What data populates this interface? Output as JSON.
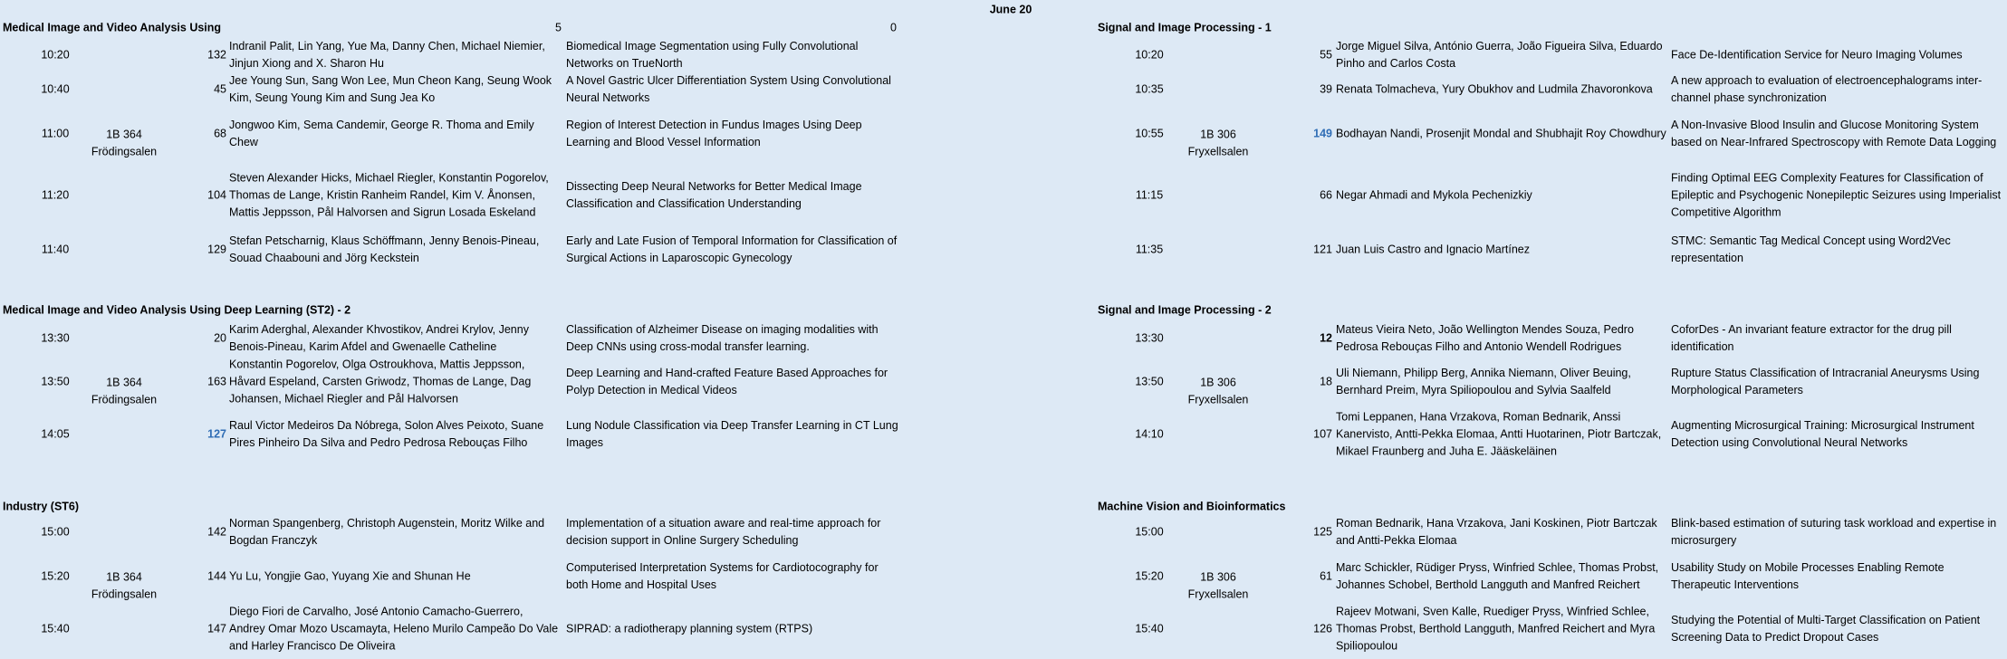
{
  "header": {
    "date": "June 20",
    "counts": [
      "5",
      "0"
    ]
  },
  "columns": [
    {
      "sessions": [
        {
          "title": "Medical Image and Video Analysis Using",
          "room": [
            "1B 364",
            "Frödingsalen"
          ],
          "talks": [
            {
              "time": "10:20",
              "id": 132,
              "authors": "Indranil Palit, Lin Yang, Yue Ma, Danny Chen, Michael Niemier, Jinjun Xiong and X. Sharon Hu",
              "title": "Biomedical Image Segmentation using Fully Convolutional Networks on TrueNorth"
            },
            {
              "time": "10:40",
              "id": 45,
              "authors": "Jee Young Sun, Sang Won Lee, Mun Cheon Kang, Seung Wook Kim, Seung Young Kim and Sung Jea Ko",
              "title": "A Novel Gastric Ulcer Differentiation System Using Convolutional Neural Networks"
            },
            {
              "time": "11:00",
              "id": 68,
              "authors": "Jongwoo Kim, Sema Candemir, George R. Thoma and Emily Chew",
              "title": "Region of Interest Detection in Fundus Images Using Deep Learning and Blood Vessel Information"
            },
            {
              "time": "11:20",
              "id": 104,
              "authors": "Steven Alexander Hicks, Michael Riegler, Konstantin Pogorelov, Thomas de Lange, Kristin Ranheim Randel, Kim V. Ånonsen, Mattis Jeppsson, Pål Halvorsen and Sigrun Losada Eskeland",
              "title": "Dissecting Deep Neural Networks for Better Medical Image Classification and Classification Understanding"
            },
            {
              "time": "11:40",
              "id": 129,
              "authors": "Stefan Petscharnig, Klaus Schöffmann, Jenny Benois-Pineau, Souad Chaabouni and Jörg Keckstein",
              "title": "Early and Late Fusion of Temporal Information for Classification of Surgical Actions in Laparoscopic Gynecology"
            }
          ]
        },
        {
          "title": "Medical Image and Video Analysis Using Deep Learning (ST2) - 2",
          "room": [
            "1B 364",
            "Frödingsalen"
          ],
          "talks": [
            {
              "time": "13:30",
              "id": 20,
              "authors": "Karim Aderghal, Alexander Khvostikov, Andrei Krylov, Jenny Benois-Pineau, Karim Afdel and Gwenaelle Catheline",
              "title": "Classification of Alzheimer Disease on imaging modalities with Deep CNNs using cross-modal transfer learning."
            },
            {
              "time": "13:50",
              "id": 163,
              "authors": "Konstantin Pogorelov, Olga Ostroukhova, Mattis Jeppsson, Håvard Espeland, Carsten Griwodz, Thomas de Lange, Dag Johansen, Michael Riegler and Pål Halvorsen",
              "title": "Deep Learning and Hand-crafted Feature Based Approaches for Polyp Detection in Medical Videos"
            },
            {
              "time": "14:05",
              "id": 127,
              "id_style": "link",
              "authors": "Raul Victor Medeiros Da Nóbrega, Solon Alves Peixoto, Suane Pires Pinheiro Da Silva and Pedro Pedrosa Rebouças Filho",
              "title": "Lung Nodule Classification via Deep Transfer Learning in CT Lung Images"
            }
          ]
        },
        {
          "title": "Industry (ST6)",
          "room": [
            "1B 364",
            "Frödingsalen"
          ],
          "talks": [
            {
              "time": "15:00",
              "id": 142,
              "authors": "Norman Spangenberg, Christoph Augenstein, Moritz Wilke and Bogdan Franczyk",
              "title": "Implementation of a situation aware and real-time approach for decision support in Online Surgery Scheduling"
            },
            {
              "time": "15:20",
              "id": 144,
              "authors": "Yu Lu, Yongjie Gao, Yuyang Xie and Shunan He",
              "title": "Computerised Interpretation Systems for Cardiotocography for both Home and Hospital Uses"
            },
            {
              "time": "15:40",
              "id": 147,
              "authors": "Diego Fiori de Carvalho, José Antonio Camacho-Guerrero, Andrey Omar Mozo Uscamayta, Heleno Murilo Campeão Do Vale and Harley Francisco De Oliveira",
              "title": "SIPRAD: a radiotherapy planning system (RTPS)"
            }
          ]
        }
      ]
    },
    {
      "sessions": [
        {
          "title": "Signal and Image Processing - 1",
          "room": [
            "1B 306",
            "Fryxellsalen"
          ],
          "talks": [
            {
              "time": "10:20",
              "id": 55,
              "authors": "Jorge Miguel Silva, António Guerra, João Figueira Silva, Eduardo Pinho and Carlos Costa",
              "title": "Face De-Identification Service for Neuro Imaging Volumes"
            },
            {
              "time": "10:35",
              "id": 39,
              "authors": "Renata Tolmacheva, Yury Obukhov and Ludmila Zhavoronkova",
              "title": "A new approach to evaluation of electroencephalograms inter-channel phase synchronization"
            },
            {
              "time": "10:55",
              "id": 149,
              "id_style": "link",
              "authors": "Bodhayan Nandi, Prosenjit Mondal and Shubhajit Roy Chowdhury",
              "title": "A Non-Invasive Blood Insulin and Glucose Monitoring System based on Near-Infrared Spectroscopy with Remote Data Logging"
            },
            {
              "time": "11:15",
              "id": 66,
              "authors": "Negar Ahmadi and Mykola Pechenizkiy",
              "title": "Finding Optimal EEG Complexity Features for Classification of Epileptic and Psychogenic Nonepileptic Seizures using Imperialist Competitive Algorithm"
            },
            {
              "time": "11:35",
              "id": 121,
              "authors": "Juan Luis Castro and Ignacio Martínez",
              "title": "STMC: Semantic Tag Medical Concept using Word2Vec representation"
            }
          ]
        },
        {
          "title": "Signal and Image Processing - 2",
          "room": [
            "1B 306",
            "Fryxellsalen"
          ],
          "talks": [
            {
              "time": "13:30",
              "id": 12,
              "id_style": "bold",
              "authors": "Mateus Vieira Neto, João Wellington Mendes Souza, Pedro Pedrosa Rebouças Filho and Antonio Wendell Rodrigues",
              "title": "CoforDes - An invariant feature extractor for the drug pill identification"
            },
            {
              "time": "13:50",
              "id": 18,
              "authors": "Uli Niemann, Philipp Berg, Annika Niemann, Oliver Beuing, Bernhard Preim, Myra Spiliopoulou and Sylvia Saalfeld",
              "title": "Rupture Status Classification of Intracranial Aneurysms Using Morphological Parameters"
            },
            {
              "time": "14:10",
              "id": 107,
              "authors": "Tomi Leppanen, Hana Vrzakova, Roman Bednarik, Anssi Kanervisto, Antti-Pekka Elomaa, Antti Huotarinen, Piotr Bartczak, Mikael Fraunberg and Juha E. Jääskeläinen",
              "title": "Augmenting Microsurgical Training: Microsurgical Instrument Detection using Convolutional Neural Networks"
            }
          ]
        },
        {
          "title": "Machine Vision and Bioinformatics",
          "room": [
            "1B 306",
            "Fryxellsalen"
          ],
          "talks": [
            {
              "time": "15:00",
              "id": 125,
              "authors": "Roman Bednarik, Hana Vrzakova, Jani Koskinen, Piotr Bartczak and Antti-Pekka Elomaa",
              "title": "Blink-based estimation of suturing task workload and expertise in microsurgery"
            },
            {
              "time": "15:20",
              "id": 61,
              "authors": "Marc Schickler, Rüdiger Pryss, Winfried Schlee, Thomas Probst, Johannes Schobel, Berthold Langguth and Manfred Reichert",
              "title": "Usability Study on Mobile Processes Enabling Remote Therapeutic Interventions"
            },
            {
              "time": "15:40",
              "id": 126,
              "authors": "Rajeev Motwani, Sven Kalle, Ruediger Pryss, Winfried Schlee, Thomas Probst, Berthold Langguth, Manfred Reichert and Myra Spiliopoulou",
              "title": "Studying the Potential of Multi-Target Classification on Patient Screening Data to Predict Dropout Cases"
            }
          ]
        }
      ]
    }
  ]
}
